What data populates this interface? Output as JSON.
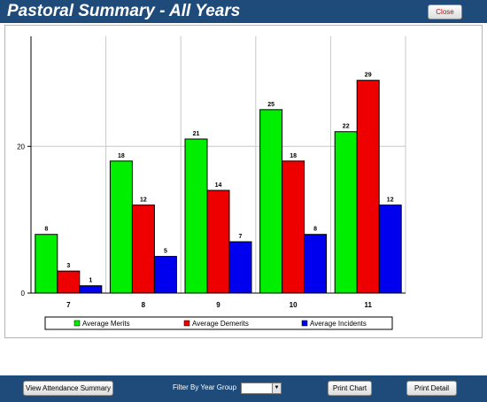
{
  "header": {
    "title": "Pastoral Summary - All Years",
    "close_label": "Close"
  },
  "toolbar": {
    "view_attendance_label": "View Attendance Summary",
    "filter_label": "Filter By Year Group",
    "filter_value": "",
    "print_chart_label": "Print Chart",
    "print_detail_label": "Print Detail"
  },
  "chart_data": {
    "type": "bar",
    "categories": [
      "7",
      "8",
      "9",
      "10",
      "11"
    ],
    "series": [
      {
        "name": "Average Merits",
        "color": "#00ee00",
        "values": [
          8,
          18,
          21,
          25,
          22
        ]
      },
      {
        "name": "Average Demerits",
        "color": "#ee0000",
        "values": [
          3,
          12,
          14,
          18,
          29
        ]
      },
      {
        "name": "Average Incidents",
        "color": "#0000ee",
        "values": [
          1,
          5,
          7,
          8,
          12
        ]
      }
    ],
    "yticks": [
      0,
      20
    ],
    "ylim": [
      0,
      35
    ],
    "grid": true,
    "legend": "bottom"
  }
}
